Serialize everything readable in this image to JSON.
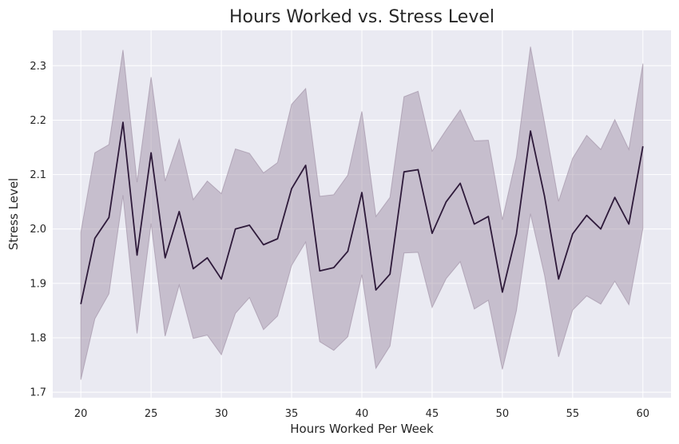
{
  "chart_data": {
    "type": "line",
    "title": "Hours Worked vs. Stress Level",
    "xlabel": "Hours Worked Per Week",
    "ylabel": "Stress Level",
    "xlim": [
      18,
      62
    ],
    "ylim": [
      1.69,
      2.365
    ],
    "xticks": [
      20,
      25,
      30,
      35,
      40,
      45,
      50,
      55,
      60
    ],
    "yticks": [
      1.7,
      1.8,
      1.9,
      2.0,
      2.1,
      2.2,
      2.3
    ],
    "grid": true,
    "colors": {
      "line": "#2e1a3a",
      "band": "#9b8aa0",
      "plot_bg": "#eaeaf2"
    },
    "series": [
      {
        "x": [
          20,
          21,
          22,
          23,
          24,
          25,
          26,
          27,
          28,
          29,
          30,
          31,
          32,
          33,
          34,
          35,
          36,
          37,
          38,
          39,
          40,
          41,
          42,
          43,
          44,
          45,
          46,
          47,
          48,
          49,
          50,
          51,
          52,
          53,
          54,
          55,
          56,
          57,
          58,
          59,
          60
        ],
        "values": [
          1.862,
          1.983,
          2.021,
          2.196,
          1.952,
          2.14,
          1.947,
          2.032,
          1.927,
          1.947,
          1.908,
          2.0,
          2.007,
          1.971,
          1.982,
          2.074,
          2.117,
          1.923,
          1.929,
          1.959,
          2.067,
          1.888,
          1.917,
          2.105,
          2.109,
          1.992,
          2.05,
          2.084,
          2.009,
          2.023,
          1.884,
          1.991,
          2.18,
          2.06,
          1.908,
          1.991,
          2.025,
          2.0,
          2.058,
          2.009,
          2.152
        ],
        "lower": [
          1.723,
          1.835,
          1.881,
          2.062,
          1.808,
          2.01,
          1.803,
          1.897,
          1.799,
          1.805,
          1.769,
          1.845,
          1.874,
          1.815,
          1.84,
          1.933,
          1.976,
          1.793,
          1.777,
          1.802,
          1.916,
          1.744,
          1.785,
          1.956,
          1.957,
          1.856,
          1.909,
          1.94,
          1.853,
          1.869,
          1.742,
          1.85,
          2.028,
          1.915,
          1.765,
          1.851,
          1.877,
          1.862,
          1.904,
          1.861,
          2.001
        ],
        "upper": [
          1.994,
          2.14,
          2.155,
          2.329,
          2.086,
          2.279,
          2.088,
          2.165,
          2.054,
          2.088,
          2.065,
          2.147,
          2.139,
          2.103,
          2.122,
          2.229,
          2.258,
          2.06,
          2.063,
          2.099,
          2.216,
          2.023,
          2.058,
          2.243,
          2.253,
          2.143,
          2.182,
          2.219,
          2.162,
          2.163,
          2.017,
          2.132,
          2.335,
          2.195,
          2.051,
          2.13,
          2.172,
          2.146,
          2.201,
          2.146,
          2.304
        ]
      }
    ]
  }
}
